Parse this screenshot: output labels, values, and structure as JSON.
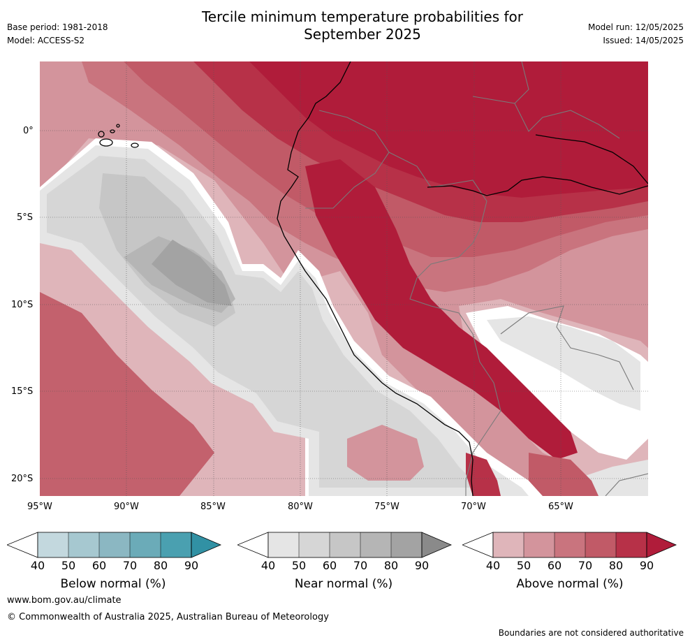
{
  "header": {
    "title_line1": "Tercile minimum temperature probabilities for",
    "title_line2": "September 2025",
    "base_period": "Base period: 1981-2018",
    "model": "Model: ACCESS-S2",
    "model_run": "Model run: 12/05/2025",
    "issued": "Issued: 14/05/2025"
  },
  "map": {
    "lat_labels": [
      "0°",
      "5°S",
      "10°S",
      "15°S",
      "20°S"
    ],
    "lon_labels": [
      "95°W",
      "90°W",
      "85°W",
      "80°W",
      "75°W",
      "70°W",
      "65°W"
    ],
    "colors": {
      "above": [
        "#dfb5ba",
        "#d3949c",
        "#c9747e",
        "#c15a67",
        "#b73148",
        "#b01c3a"
      ],
      "near": [
        "#e5e5e5",
        "#d6d6d6",
        "#c6c6c6",
        "#b5b5b5",
        "#a3a3a3",
        "#8a8a8a"
      ],
      "below": [
        "#c3d8de",
        "#a6c8d0",
        "#8bb7c2",
        "#6babb8",
        "#4aa0b0",
        "#3191a4"
      ],
      "coast": "#000000",
      "border": "#7a7a7a"
    }
  },
  "colorbars": [
    {
      "label": "Below normal (%)",
      "ticks": [
        "40",
        "50",
        "60",
        "70",
        "80",
        "90"
      ]
    },
    {
      "label": "Near normal (%)",
      "ticks": [
        "40",
        "50",
        "60",
        "70",
        "80",
        "90"
      ]
    },
    {
      "label": "Above normal (%)",
      "ticks": [
        "40",
        "50",
        "60",
        "70",
        "80",
        "90"
      ]
    }
  ],
  "footer": {
    "url": "www.bom.gov.au/climate",
    "copyright": "© Commonwealth of Australia 2025, Australian Bureau of Meteorology",
    "disclaimer": "Boundaries are not considered authoritative"
  }
}
